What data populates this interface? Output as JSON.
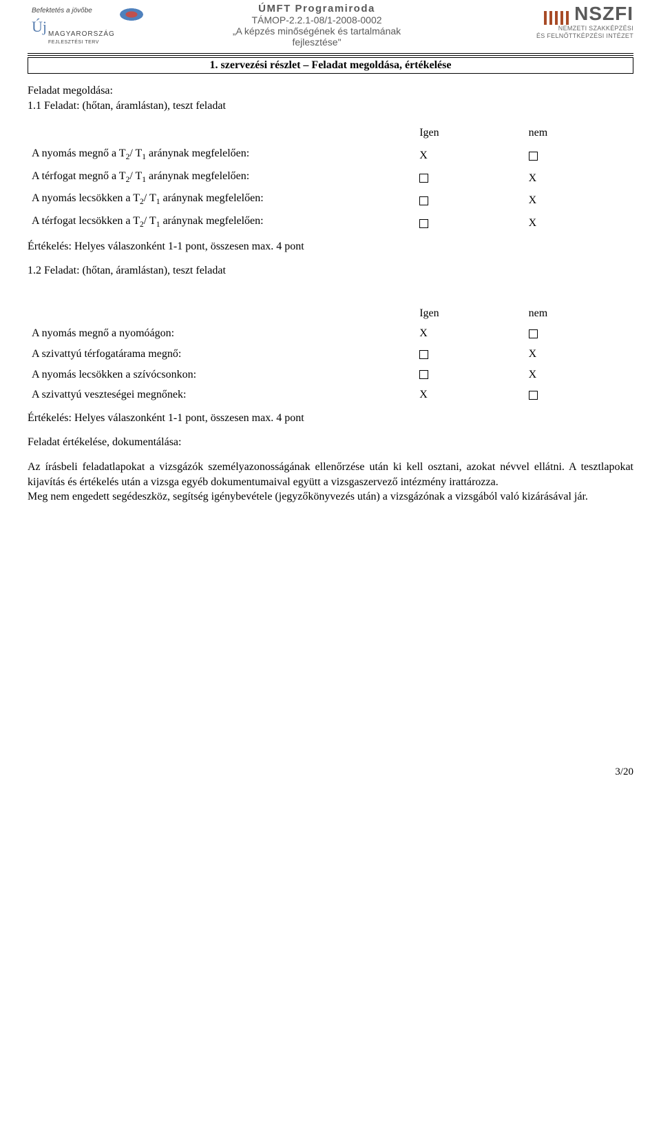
{
  "header": {
    "logo_left": {
      "motto": "Befektetés a jövőbe",
      "brand_script": "Új",
      "brand_rest": "MAGYARORSZÁG",
      "brand_sub": "FEJLESZTÉSI TERV"
    },
    "center": {
      "line1": "ÚMFT Programiroda",
      "line2": "TÁMOP-2.2.1-08/1-2008-0002",
      "line3": "„A képzés minőségének és tartalmának",
      "line4": "fejlesztése\""
    },
    "logo_right": {
      "acronym": "NSZFI",
      "sub1": "NEMZETI SZAKKÉPZÉSI",
      "sub2": "ÉS FELNŐTTKÉPZÉSI INTÉZET"
    }
  },
  "section_title": "1. szervezési részlet – Feladat megoldása, értékelése",
  "labels": {
    "solution_heading": "Feladat megoldása:",
    "task1_title": "1.1 Feladat: (hőtan, áramlástan), teszt feladat",
    "task2_title": "1.2 Feladat: (hőtan, áramlástan), teszt feladat",
    "col_yes": "Igen",
    "col_no": "nem",
    "eval_text": "Értékelés: Helyes válaszonként 1-1 pont, összesen max. 4 pont",
    "doc_heading": "Feladat értékelése, dokumentálása:"
  },
  "task1_rows": [
    {
      "label_pre": "A nyomás megnő a T",
      "sub": "2",
      "label_mid": "/ T",
      "sub2": "1",
      "label_post": " aránynak megfelelően:",
      "yes": "X",
      "no": "box"
    },
    {
      "label_pre": "A térfogat megnő a T",
      "sub": "2",
      "label_mid": "/ T",
      "sub2": "1",
      "label_post": " aránynak megfelelően:",
      "yes": "box",
      "no": "X"
    },
    {
      "label_pre": "A nyomás lecsökken a T",
      "sub": "2",
      "label_mid": "/ T",
      "sub2": "1",
      "label_post": " aránynak megfelelően:",
      "yes": "box",
      "no": "X"
    },
    {
      "label_pre": "A térfogat lecsökken a T",
      "sub": "2",
      "label_mid": "/ T",
      "sub2": "1",
      "label_post": " aránynak megfelelően:",
      "yes": "box",
      "no": "X"
    }
  ],
  "task2_rows": [
    {
      "label": "A nyomás megnő a nyomóágon:",
      "yes": "X",
      "no": "box"
    },
    {
      "label": "A szivattyú térfogatárama megnő:",
      "yes": "box",
      "no": "X"
    },
    {
      "label": "A nyomás lecsökken a szívócsonkon:",
      "yes": "box",
      "no": "X"
    },
    {
      "label": "A szivattyú veszteségei megnőnek:",
      "yes": "X",
      "no": "box"
    }
  ],
  "paragraphs": {
    "p1": "Az írásbeli feladatlapokat a vizsgázók személyazonosságának ellenőrzése után ki kell osztani, azokat névvel ellátni. A tesztlapokat kijavítás és értékelés után a vizsga egyéb dokumentumaival együtt a vizsgaszervező intézmény irattározza.",
    "p2": "Meg nem engedett segédeszköz, segítség igénybevétele (jegyzőkönyvezés után) a vizsgázónak a vizsgából való kizárásával jár."
  },
  "footer": {
    "page": "3/20"
  }
}
